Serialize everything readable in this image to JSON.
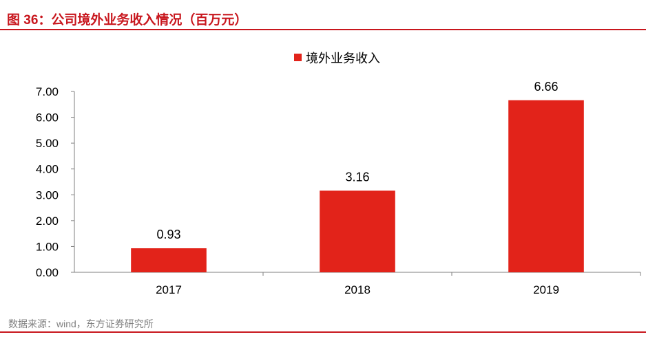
{
  "header": {
    "title": "图 36：公司境外业务收入情况（百万元）"
  },
  "footer": {
    "source": "数据来源：wind，东方证券研究所"
  },
  "colors": {
    "accent": "#c8161d",
    "bar": "#e2231a"
  },
  "chart_data": {
    "type": "bar",
    "categories": [
      "2017",
      "2018",
      "2019"
    ],
    "series": [
      {
        "name": "境外业务收入",
        "values": [
          0.93,
          3.16,
          6.66
        ],
        "data_labels": [
          "0.93",
          "3.16",
          "6.66"
        ]
      }
    ],
    "yticks": [
      "0.00",
      "1.00",
      "2.00",
      "3.00",
      "4.00",
      "5.00",
      "6.00",
      "7.00"
    ],
    "ylim": [
      0,
      7
    ],
    "legend": "top-center",
    "grid": false
  }
}
